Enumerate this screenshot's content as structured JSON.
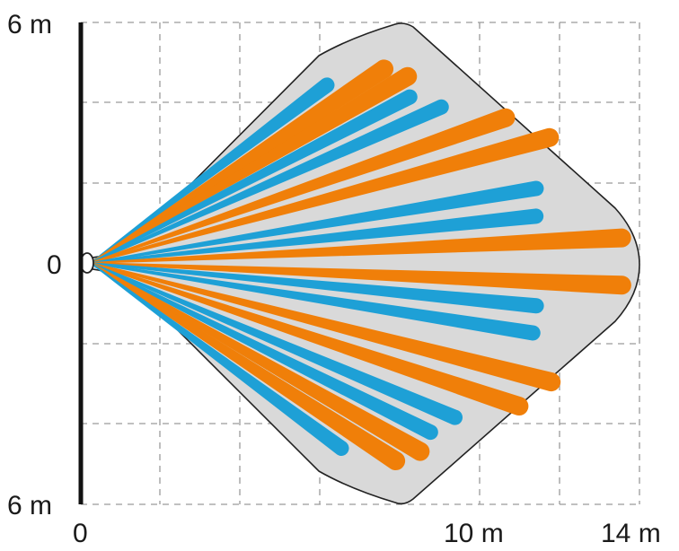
{
  "labels": {
    "top": "6 m",
    "middle": "0",
    "bottom": "6 m",
    "x_origin": "0",
    "x_mid": "10 m",
    "x_end": "14 m"
  },
  "colors": {
    "zone_fill": "#d9d9d9",
    "zone_stroke": "#222222",
    "beam_blue": "#1ea0d6",
    "beam_orange": "#f07f09",
    "grid": "#9a9a9a",
    "wall": "#111111"
  },
  "beams": [
    {
      "color": "blue",
      "length_m": 7.4,
      "angle_deg": 37
    },
    {
      "color": "orange",
      "length_m": 8.8,
      "angle_deg": 33.5
    },
    {
      "color": "orange",
      "length_m": 9.2,
      "angle_deg": 30.5
    },
    {
      "color": "blue",
      "length_m": 9.0,
      "angle_deg": 27.5
    },
    {
      "color": "blue",
      "length_m": 9.6,
      "angle_deg": 24
    },
    {
      "color": "orange",
      "length_m": 11.0,
      "angle_deg": 19.3
    },
    {
      "color": "orange",
      "length_m": 11.9,
      "angle_deg": 15.3
    },
    {
      "color": "blue",
      "length_m": 11.3,
      "angle_deg": 9.5
    },
    {
      "color": "blue",
      "length_m": 11.2,
      "angle_deg": 6
    },
    {
      "color": "orange",
      "length_m": 13.3,
      "angle_deg": 2.7
    },
    {
      "color": "orange",
      "length_m": 13.3,
      "angle_deg": -2.4
    },
    {
      "color": "blue",
      "length_m": 11.2,
      "angle_deg": -5.5
    },
    {
      "color": "blue",
      "length_m": 11.2,
      "angle_deg": -9
    },
    {
      "color": "orange",
      "length_m": 11.9,
      "angle_deg": -14.5
    },
    {
      "color": "orange",
      "length_m": 11.3,
      "angle_deg": -18.5
    },
    {
      "color": "blue",
      "length_m": 9.9,
      "angle_deg": -23
    },
    {
      "color": "blue",
      "length_m": 9.5,
      "angle_deg": -26.5
    },
    {
      "color": "orange",
      "length_m": 9.5,
      "angle_deg": -29.8
    },
    {
      "color": "orange",
      "length_m": 9.1,
      "angle_deg": -33
    },
    {
      "color": "blue",
      "length_m": 7.8,
      "angle_deg": -36.5
    }
  ]
}
